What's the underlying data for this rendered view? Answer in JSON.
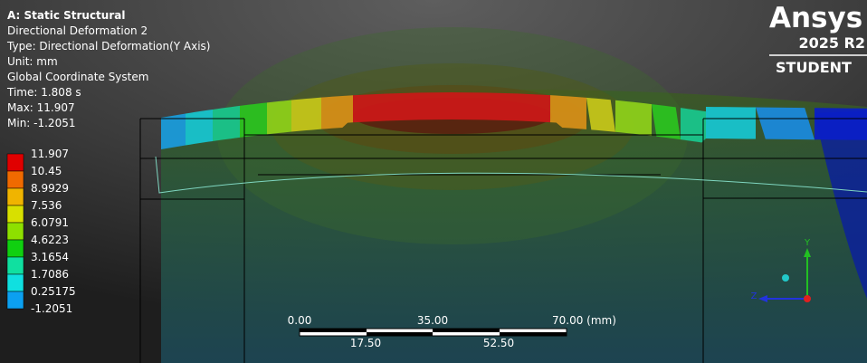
{
  "header": {
    "title": "A: Static Structural",
    "lines": [
      "Directional Deformation 2",
      "Type: Directional Deformation(Y Axis)",
      "Unit: mm",
      "Global Coordinate System",
      "Time: 1.808 s",
      "Max: 11.907",
      "Min: -1.2051"
    ]
  },
  "legend": {
    "labels": [
      "11.907",
      "10.45",
      "8.9929",
      "7.536",
      "6.0791",
      "4.6223",
      "3.1654",
      "1.7086",
      "0.25175",
      "-1.2051"
    ]
  },
  "logo": {
    "brand": "Ansys",
    "version": "2025 R2",
    "edition": "STUDENT"
  },
  "scale_bar": {
    "top_labels": [
      "0.00",
      "35.00",
      "70.00 (mm)"
    ],
    "bottom_labels": [
      "17.50",
      "52.50"
    ]
  },
  "triad": {
    "y": "Y",
    "z": "Z"
  }
}
